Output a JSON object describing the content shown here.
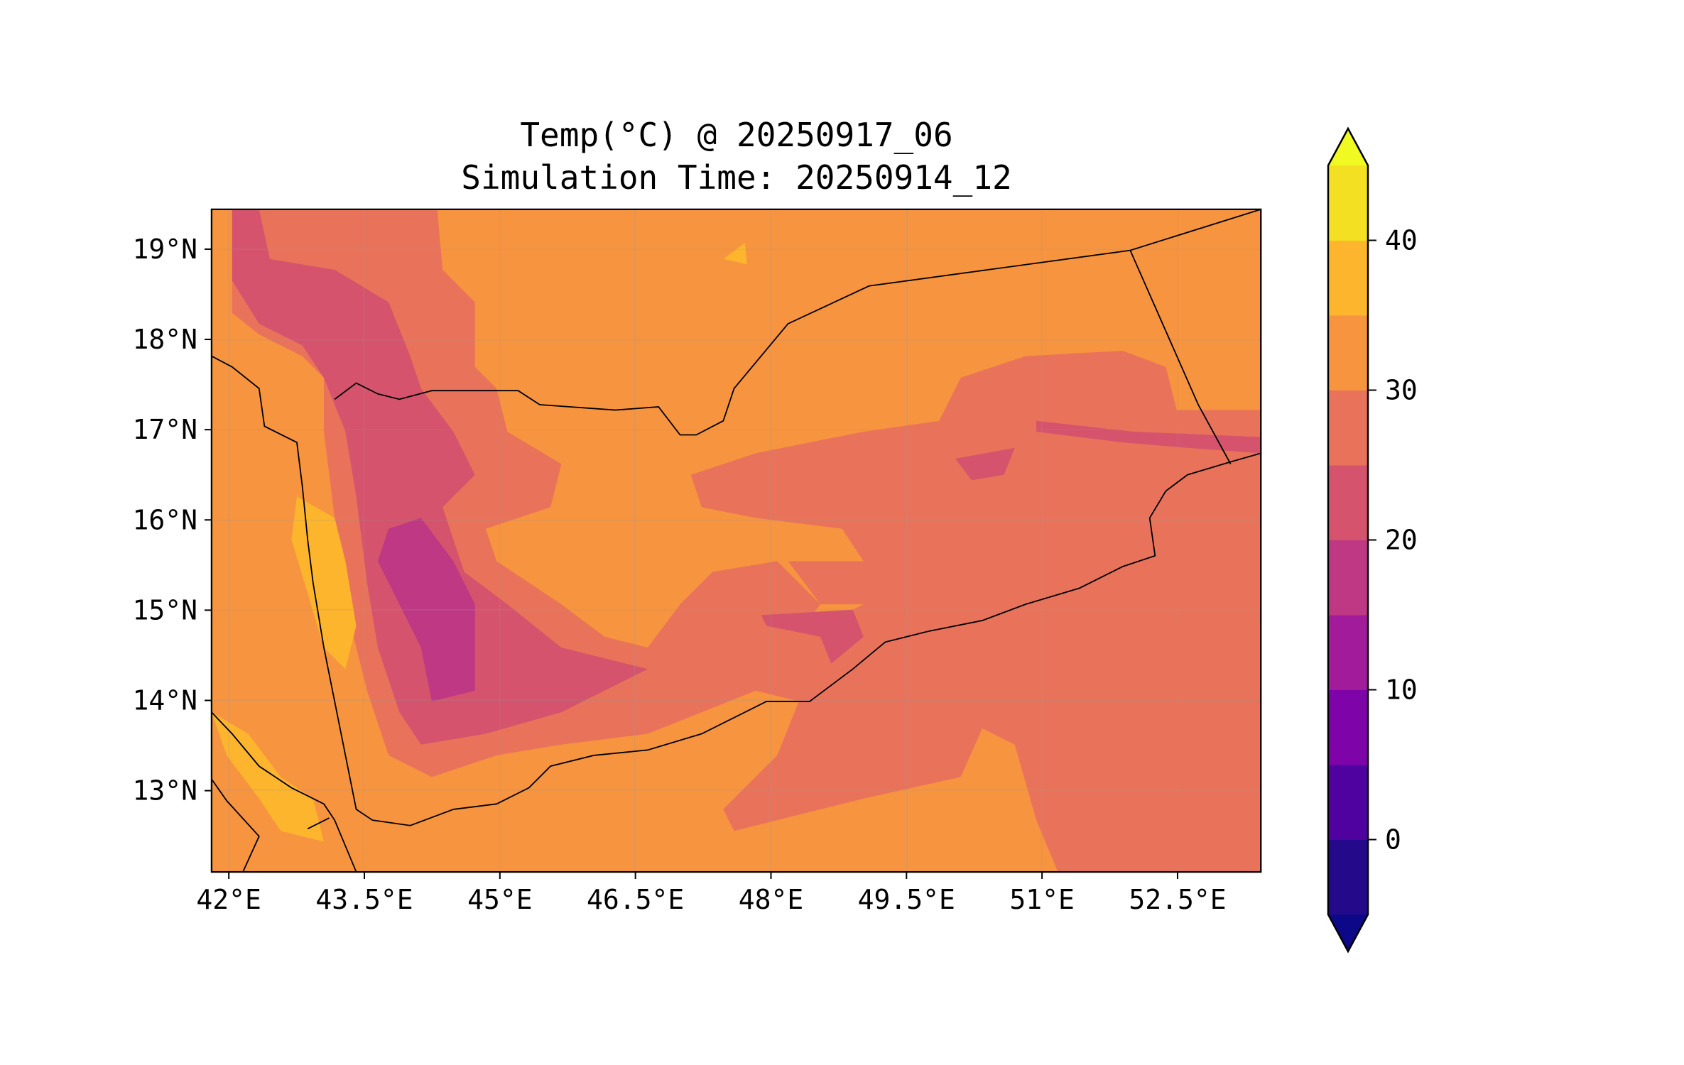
{
  "chart_data": {
    "type": "heatmap",
    "subtype": "filled-contour map",
    "title": "Temp(°C) @ 20250917_06",
    "subtitle": "Simulation Time: 20250914_12",
    "xlabel": "",
    "ylabel": "",
    "xlim": [
      41.81,
      53.42
    ],
    "ylim": [
      12.1,
      19.44
    ],
    "x_ticks": [
      42,
      43.5,
      45,
      46.5,
      48,
      49.5,
      51,
      52.5
    ],
    "x_tick_labels": [
      "42°E",
      "43.5°E",
      "45°E",
      "46.5°E",
      "48°E",
      "49.5°E",
      "51°E",
      "52.5°E"
    ],
    "y_ticks": [
      13,
      14,
      15,
      16,
      17,
      18,
      19
    ],
    "y_tick_labels": [
      "13°N",
      "14°N",
      "15°N",
      "16°N",
      "17°N",
      "18°N",
      "19°N"
    ],
    "grid": true,
    "colorbar": {
      "levels": [
        -5,
        0,
        5,
        10,
        15,
        20,
        25,
        30,
        35,
        40,
        45
      ],
      "colors": [
        "#240a8a",
        "#5002a1",
        "#7e03a8",
        "#a11b9b",
        "#be3883",
        "#d5536c",
        "#e9735a",
        "#f7943f",
        "#fdb52d",
        "#f4e023"
      ],
      "under_color": "#0d0887",
      "over_color": "#f0f921",
      "extend": "both",
      "ticks": [
        0,
        10,
        20,
        30,
        40
      ],
      "tick_labels": [
        "0",
        "10",
        "20",
        "30",
        "40"
      ],
      "placement": "right"
    },
    "field_summary": "Mostly 30-35°C; 25-30°C over eastern interior/south coast; 15-25°C over western highlands; 35-40°C along Red Sea coastal plain"
  }
}
